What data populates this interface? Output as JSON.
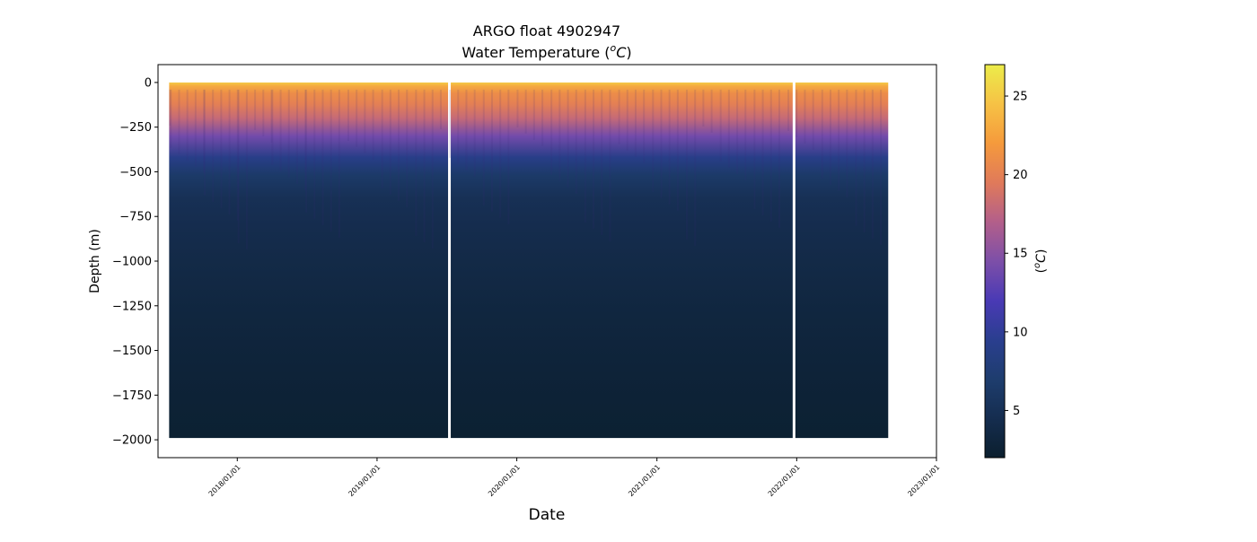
{
  "chart_data": {
    "type": "heatmap",
    "title": "ARGO float 4902947",
    "subtitle_prefix": "Water Temperature (",
    "subtitle_sup": "o",
    "subtitle_unit": "C",
    "subtitle_suffix": ")",
    "xlabel": "Date",
    "ylabel": "Depth (m)",
    "colorbar_label_prefix": "(",
    "colorbar_label_sup": "o",
    "colorbar_label_unit": "C",
    "colorbar_label_suffix": ")",
    "x_range": [
      "2017-06-08",
      "2023-01-01"
    ],
    "y_range": [
      -2100,
      100
    ],
    "x_ticks": [
      {
        "date": "2018-01-01",
        "label": "2018/01/01"
      },
      {
        "date": "2019-01-01",
        "label": "2019/01/01"
      },
      {
        "date": "2020-01-01",
        "label": "2020/01/01"
      },
      {
        "date": "2021-01-01",
        "label": "2021/01/01"
      },
      {
        "date": "2022-01-01",
        "label": "2022/01/01"
      },
      {
        "date": "2023-01-01",
        "label": "2023/01/01"
      }
    ],
    "y_ticks": [
      0,
      -250,
      -500,
      -750,
      -1000,
      -1250,
      -1500,
      -1750,
      -2000
    ],
    "y_tick_labels": [
      "0",
      "−250",
      "−500",
      "−750",
      "−1000",
      "−1250",
      "−1500",
      "−1750",
      "−2000"
    ],
    "colorbar_range": [
      2,
      27
    ],
    "colorbar_ticks": [
      5,
      10,
      15,
      20,
      25
    ],
    "colorbar_tick_labels": [
      "5",
      "10",
      "15",
      "20",
      "25"
    ],
    "colormap": [
      "#0b1f2e",
      "#152d4f",
      "#1e3d6e",
      "#2a3e8f",
      "#4a3ab5",
      "#7d4fa8",
      "#b35f8a",
      "#e07a5a",
      "#f59a3c",
      "#f6c245",
      "#ecec4a"
    ],
    "data_start": "2017-07-07",
    "data_end": "2022-08-28",
    "gaps": [
      "2019-07-09",
      "2021-12-25"
    ],
    "max_depth": -1990,
    "temperature_profile": {
      "depth": [
        0,
        -20,
        -60,
        -120,
        -200,
        -300,
        -420,
        -520,
        -650,
        -800,
        -1000,
        -1300,
        -1600,
        -2000
      ],
      "temperature": [
        25,
        23,
        21,
        20,
        18,
        14,
        9,
        6.5,
        5,
        4.4,
        3.9,
        3.3,
        2.8,
        2.3
      ]
    }
  }
}
